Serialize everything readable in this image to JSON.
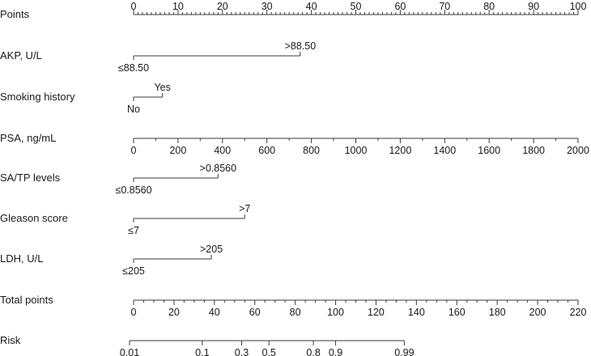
{
  "chart_data": {
    "type": "nomogram",
    "rows": [
      {
        "key": "points",
        "label": "Points",
        "kind": "axis",
        "range": [
          0,
          100
        ],
        "major_step": 10,
        "minor_step": 1,
        "labels": [
          "0",
          "10",
          "20",
          "30",
          "40",
          "50",
          "60",
          "70",
          "80",
          "90",
          "100"
        ],
        "label_side": "above"
      },
      {
        "key": "akp",
        "label": "AKP, U/L",
        "kind": "categorical",
        "levels": [
          {
            "label": "≤88.50",
            "points": 0,
            "side": "below"
          },
          {
            "label": ">88.50",
            "points": 37.5,
            "side": "above"
          }
        ]
      },
      {
        "key": "smoking",
        "label": "Smoking history",
        "kind": "categorical",
        "levels": [
          {
            "label": "No",
            "points": 0,
            "side": "below"
          },
          {
            "label": "Yes",
            "points": 6.5,
            "side": "above"
          }
        ]
      },
      {
        "key": "psa",
        "label": "PSA, ng/mL",
        "kind": "axis",
        "range": [
          0,
          2000
        ],
        "points_range": [
          0,
          100
        ],
        "major_step": 200,
        "minor_step": 100,
        "labels": [
          "0",
          "200",
          "400",
          "600",
          "800",
          "1000",
          "1200",
          "1400",
          "1600",
          "1800",
          "2000"
        ],
        "label_side": "below"
      },
      {
        "key": "satp",
        "label": "SA/TP levels",
        "kind": "categorical",
        "levels": [
          {
            "label": "≤0.8560",
            "points": 0,
            "side": "below"
          },
          {
            "label": ">0.8560",
            "points": 19,
            "side": "above"
          }
        ]
      },
      {
        "key": "gleason",
        "label": "Gleason score",
        "kind": "categorical",
        "levels": [
          {
            "label": "≤7",
            "points": 0,
            "side": "below"
          },
          {
            "label": ">7",
            "points": 25,
            "side": "above"
          }
        ]
      },
      {
        "key": "ldh",
        "label": "LDH, U/L",
        "kind": "categorical",
        "levels": [
          {
            "label": "≤205",
            "points": 0,
            "side": "below"
          },
          {
            "label": ">205",
            "points": 17.5,
            "side": "above"
          }
        ]
      },
      {
        "key": "total",
        "label": "Total points",
        "kind": "axis",
        "range": [
          0,
          220
        ],
        "points_range": [
          0,
          100
        ],
        "major_step": 20,
        "minor_step": 5,
        "labels": [
          "0",
          "20",
          "40",
          "60",
          "80",
          "100",
          "120",
          "140",
          "160",
          "180",
          "200",
          "220"
        ],
        "label_side": "below"
      },
      {
        "key": "risk",
        "label": "Risk",
        "kind": "risk_axis",
        "ticks": [
          {
            "label": "0.01",
            "total_points": -2
          },
          {
            "label": "0.1",
            "total_points": 34
          },
          {
            "label": "0.3",
            "total_points": 53.5
          },
          {
            "label": "0.5",
            "total_points": 67
          },
          {
            "label": "0.8",
            "total_points": 89
          },
          {
            "label": "0.9",
            "total_points": 100
          },
          {
            "label": "0.99",
            "total_points": 134
          }
        ],
        "label_side": "below"
      }
    ]
  }
}
